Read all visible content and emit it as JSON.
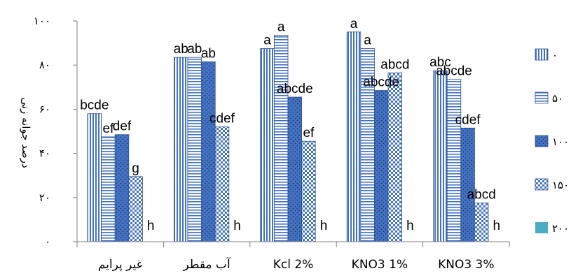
{
  "chart_data": {
    "type": "bar",
    "title": "",
    "xlabel": "",
    "ylabel": "درصد جوانه زنی",
    "ylim": [
      0,
      100
    ],
    "yticks": [
      {
        "value": 0,
        "label": "۰"
      },
      {
        "value": 20,
        "label": "۲۰"
      },
      {
        "value": 40,
        "label": "۴۰"
      },
      {
        "value": 60,
        "label": "۶۰"
      },
      {
        "value": 80,
        "label": "۸۰"
      },
      {
        "value": 100,
        "label": "۱۰۰"
      }
    ],
    "categories": [
      "غیر پرایم",
      "آب مقطر",
      "Kcl 2%",
      "KNO3 1%",
      "KNO3 3%"
    ],
    "legend_position": "right",
    "grid": false,
    "series": [
      {
        "name": "۰",
        "pattern": "vstripe",
        "values": [
          58,
          83.5,
          87.5,
          95,
          77.5
        ],
        "labels": [
          "bcde",
          "ab",
          "a",
          "a",
          "abc"
        ]
      },
      {
        "name": "۵۰",
        "pattern": "hstripe",
        "values": [
          47.5,
          83.5,
          93.5,
          87.5,
          73.5
        ],
        "labels": [
          "ef",
          "ab",
          "a",
          "a",
          "abcde"
        ]
      },
      {
        "name": "۱۰۰",
        "pattern": "dots",
        "values": [
          48.5,
          81.5,
          65.5,
          68.5,
          51.5
        ],
        "labels": [
          "def",
          "ab",
          "abcde",
          "abcde",
          "cdef"
        ]
      },
      {
        "name": "۱۵۰",
        "pattern": "checker",
        "values": [
          29.5,
          52,
          45.5,
          76.5,
          17.5
        ],
        "labels": [
          "g",
          "cdef",
          "ef",
          "abcd",
          "abcd"
        ]
      },
      {
        "name": "۲۰۰",
        "pattern": "solid",
        "values": [
          0,
          0,
          0,
          0,
          0
        ],
        "labels": [
          "h",
          "h",
          "h",
          "h",
          "h"
        ]
      }
    ],
    "colors": {
      "series_blue": "#4472c4",
      "legend_200": "#4bacc6",
      "axis": "#7f7f7f"
    }
  }
}
